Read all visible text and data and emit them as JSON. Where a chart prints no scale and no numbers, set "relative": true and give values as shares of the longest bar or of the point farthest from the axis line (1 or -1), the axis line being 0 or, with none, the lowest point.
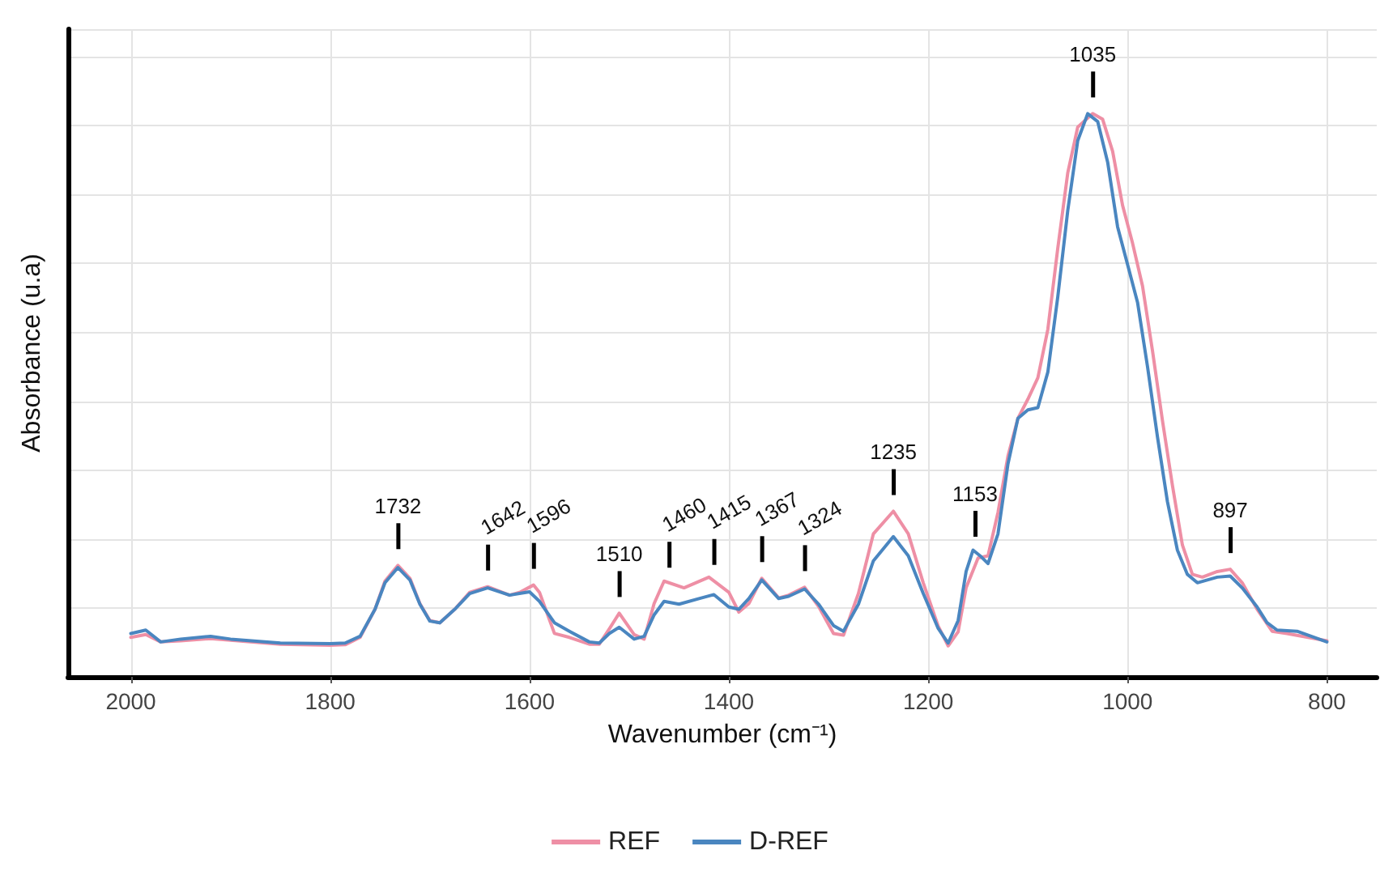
{
  "chart_data": {
    "type": "line",
    "relative": true,
    "xlabel": "Wavenumber (cm⁻¹)",
    "ylabel": "Absorbance (u.a)",
    "xlim": [
      2063,
      750
    ],
    "xticks": [
      2000,
      1800,
      1600,
      1400,
      1200,
      1000,
      800
    ],
    "grid": true,
    "legend": "bottom",
    "marker": "none",
    "line_style": "solid",
    "series": [
      {
        "name": "REF",
        "color": "#ee8fa5",
        "x": [
          2000,
          1985,
          1970,
          1950,
          1920,
          1900,
          1850,
          1800,
          1785,
          1770,
          1755,
          1745,
          1732,
          1720,
          1710,
          1700,
          1690,
          1675,
          1660,
          1642,
          1620,
          1610,
          1596,
          1590,
          1575,
          1560,
          1540,
          1530,
          1520,
          1510,
          1495,
          1485,
          1475,
          1465,
          1445,
          1420,
          1400,
          1390,
          1380,
          1367,
          1350,
          1340,
          1324,
          1310,
          1295,
          1285,
          1270,
          1255,
          1235,
          1220,
          1205,
          1190,
          1180,
          1170,
          1162,
          1150,
          1140,
          1130,
          1120,
          1110,
          1100,
          1090,
          1080,
          1070,
          1060,
          1050,
          1035,
          1025,
          1015,
          1005,
          995,
          985,
          975,
          965,
          955,
          945,
          935,
          925,
          910,
          897,
          885,
          870,
          855,
          840,
          800
        ],
        "values": [
          0.07,
          0.075,
          0.062,
          0.064,
          0.068,
          0.065,
          0.058,
          0.056,
          0.057,
          0.07,
          0.12,
          0.17,
          0.198,
          0.175,
          0.13,
          0.1,
          0.096,
          0.12,
          0.15,
          0.16,
          0.145,
          0.15,
          0.163,
          0.15,
          0.077,
          0.07,
          0.058,
          0.058,
          0.085,
          0.113,
          0.075,
          0.067,
          0.13,
          0.17,
          0.158,
          0.177,
          0.15,
          0.115,
          0.13,
          0.175,
          0.14,
          0.145,
          0.159,
          0.125,
          0.077,
          0.074,
          0.148,
          0.254,
          0.294,
          0.254,
          0.167,
          0.09,
          0.055,
          0.08,
          0.158,
          0.211,
          0.215,
          0.292,
          0.392,
          0.459,
          0.493,
          0.531,
          0.617,
          0.761,
          0.895,
          0.976,
          1.0,
          0.99,
          0.933,
          0.837,
          0.77,
          0.694,
          0.579,
          0.455,
          0.34,
          0.234,
          0.182,
          0.177,
          0.187,
          0.191,
          0.167,
          0.12,
          0.081,
          0.077,
          0.064
        ]
      },
      {
        "name": "D-REF",
        "color": "#4a86c0",
        "x": [
          2000,
          1985,
          1970,
          1950,
          1920,
          1900,
          1850,
          1800,
          1785,
          1770,
          1755,
          1745,
          1732,
          1720,
          1710,
          1700,
          1690,
          1675,
          1660,
          1642,
          1620,
          1610,
          1600,
          1590,
          1575,
          1560,
          1540,
          1530,
          1520,
          1510,
          1495,
          1485,
          1475,
          1465,
          1450,
          1430,
          1415,
          1400,
          1390,
          1380,
          1367,
          1350,
          1340,
          1324,
          1310,
          1295,
          1285,
          1270,
          1255,
          1235,
          1220,
          1205,
          1190,
          1180,
          1170,
          1162,
          1155,
          1148,
          1140,
          1130,
          1120,
          1110,
          1100,
          1090,
          1080,
          1070,
          1060,
          1050,
          1040,
          1030,
          1020,
          1010,
          1000,
          990,
          980,
          970,
          960,
          950,
          940,
          930,
          920,
          910,
          897,
          885,
          870,
          860,
          850,
          830,
          800
        ],
        "values": [
          0.077,
          0.083,
          0.062,
          0.067,
          0.072,
          0.067,
          0.06,
          0.059,
          0.06,
          0.072,
          0.12,
          0.167,
          0.194,
          0.172,
          0.129,
          0.099,
          0.096,
          0.12,
          0.148,
          0.158,
          0.145,
          0.148,
          0.151,
          0.134,
          0.096,
          0.081,
          0.062,
          0.06,
          0.077,
          0.088,
          0.067,
          0.072,
          0.11,
          0.134,
          0.129,
          0.139,
          0.146,
          0.124,
          0.12,
          0.139,
          0.172,
          0.139,
          0.143,
          0.156,
          0.129,
          0.091,
          0.081,
          0.129,
          0.206,
          0.249,
          0.215,
          0.148,
          0.086,
          0.06,
          0.1,
          0.187,
          0.225,
          0.215,
          0.201,
          0.254,
          0.378,
          0.459,
          0.474,
          0.478,
          0.541,
          0.675,
          0.828,
          0.952,
          1.0,
          0.986,
          0.914,
          0.799,
          0.732,
          0.665,
          0.551,
          0.426,
          0.311,
          0.225,
          0.182,
          0.167,
          0.172,
          0.177,
          0.179,
          0.158,
          0.124,
          0.096,
          0.083,
          0.081,
          0.062
        ]
      }
    ],
    "annotations": [
      {
        "text": "1732",
        "x": 1732,
        "y": 0.198
      },
      {
        "text": "1642",
        "x": 1642,
        "y": 0.16
      },
      {
        "text": "1596",
        "x": 1596,
        "y": 0.163
      },
      {
        "text": "1510",
        "x": 1510,
        "y": 0.113
      },
      {
        "text": "1460",
        "x": 1460,
        "y": 0.165
      },
      {
        "text": "1415",
        "x": 1415,
        "y": 0.17
      },
      {
        "text": "1367",
        "x": 1367,
        "y": 0.175
      },
      {
        "text": "1324",
        "x": 1324,
        "y": 0.159
      },
      {
        "text": "1235",
        "x": 1235,
        "y": 0.294
      },
      {
        "text": "1153",
        "x": 1153,
        "y": 0.22
      },
      {
        "text": "1035",
        "x": 1035,
        "y": 1.0
      },
      {
        "text": "897",
        "x": 897,
        "y": 0.191
      }
    ]
  }
}
